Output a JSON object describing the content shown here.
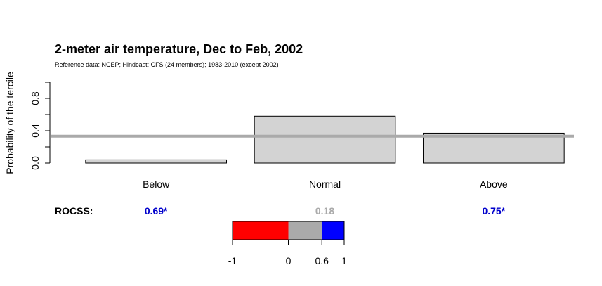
{
  "chart_data": {
    "type": "bar",
    "title": "2-meter air temperature, Dec to Feb, 2002",
    "subtitle": "Reference data: NCEP; Hindcast: CFS (24 members); 1983-2010 (except 2002)",
    "ylabel": "Probability of the tercile",
    "ylim": [
      0,
      1
    ],
    "yticks": [
      {
        "value": 0.0,
        "label": "0.0"
      },
      {
        "value": 0.2,
        "label": ""
      },
      {
        "value": 0.4,
        "label": "0.4"
      },
      {
        "value": 0.6,
        "label": ""
      },
      {
        "value": 0.8,
        "label": "0.8"
      },
      {
        "value": 1.0,
        "label": ""
      }
    ],
    "categories": [
      "Below",
      "Normal",
      "Above"
    ],
    "values": [
      0.04,
      0.58,
      0.37
    ],
    "reference_line": {
      "value": 0.333,
      "color": "#aaaaaa"
    },
    "bar_fill": "#d3d3d3",
    "bar_stroke": "#000000",
    "score_label": "ROCSS:",
    "scores": [
      {
        "text": "0.69*",
        "color": "#0000cc"
      },
      {
        "text": "0.18",
        "color": "#aaaaaa"
      },
      {
        "text": "0.75*",
        "color": "#0000cc"
      }
    ],
    "colorbar": {
      "segments": [
        {
          "from": -1,
          "to": 0,
          "color": "#ff0000"
        },
        {
          "from": 0,
          "to": 0.6,
          "color": "#aaaaaa"
        },
        {
          "from": 0.6,
          "to": 1,
          "color": "#0000ff"
        }
      ],
      "ticks": [
        {
          "value": -1,
          "label": "-1"
        },
        {
          "value": 0,
          "label": "0"
        },
        {
          "value": 0.6,
          "label": "0.6"
        },
        {
          "value": 1,
          "label": "1"
        }
      ]
    }
  }
}
